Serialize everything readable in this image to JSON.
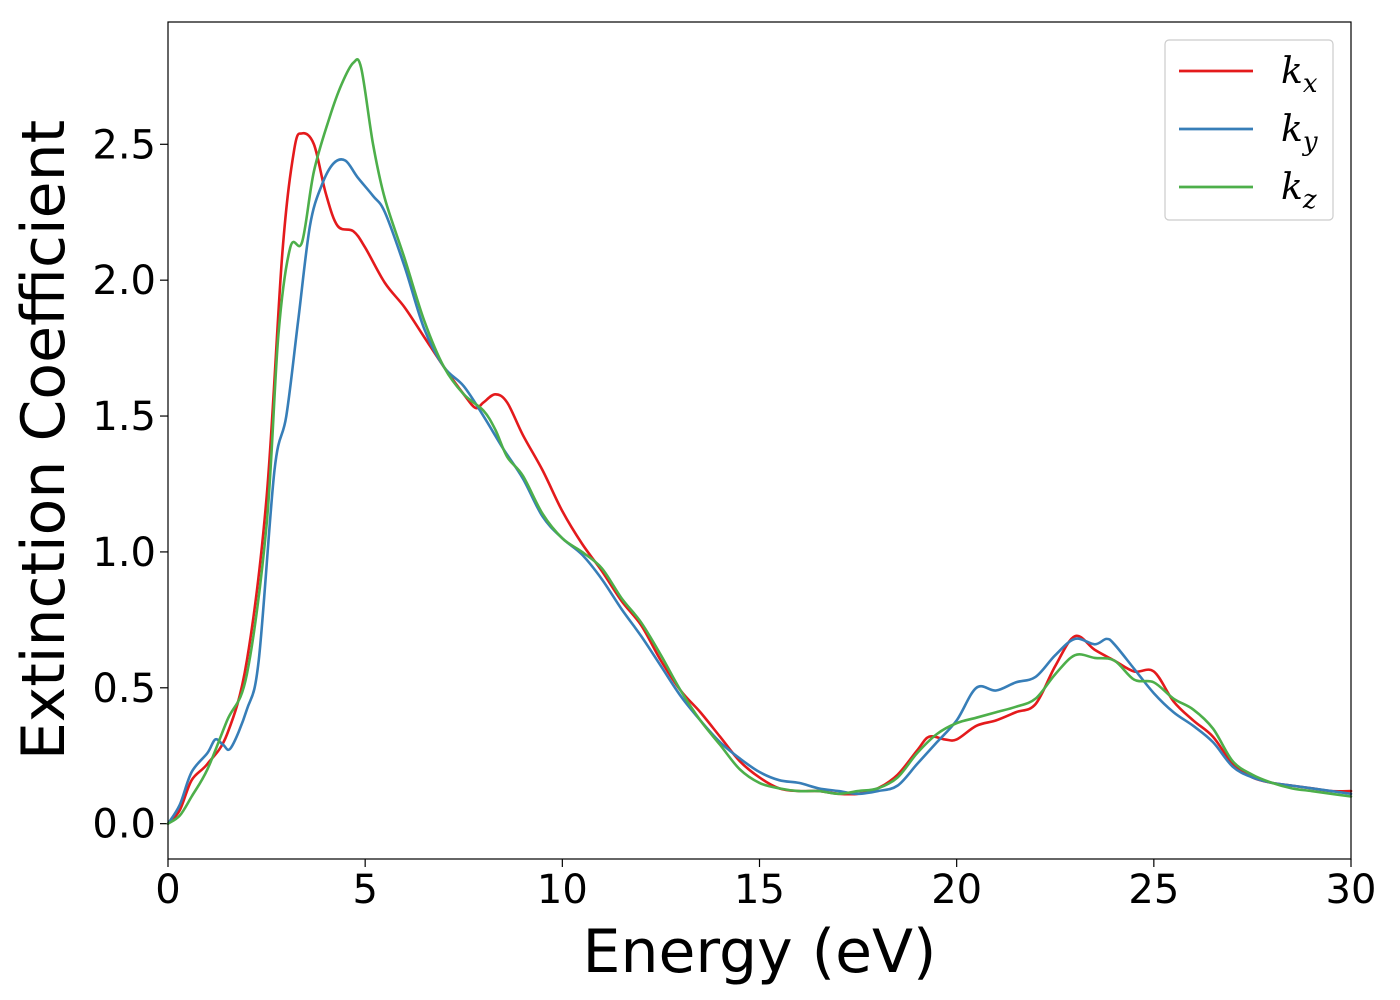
{
  "chart_data": {
    "type": "line",
    "xlabel": "Energy (eV)",
    "ylabel": "Extinction Coefficient",
    "xlim": [
      0,
      30
    ],
    "ylim": [
      -0.13,
      2.95
    ],
    "xticks": [
      0,
      5,
      10,
      15,
      20,
      25,
      30
    ],
    "xtick_labels": [
      "0",
      "5",
      "10",
      "15",
      "20",
      "25",
      "30"
    ],
    "yticks": [
      0.0,
      0.5,
      1.0,
      1.5,
      2.0,
      2.5
    ],
    "ytick_labels": [
      "0.0",
      "0.5",
      "1.0",
      "1.5",
      "2.0",
      "2.5"
    ],
    "grid": false,
    "legend_position": "top-right",
    "series": [
      {
        "name": "k",
        "subscript": "x",
        "color": "#e41a1c",
        "points": [
          [
            0,
            0
          ],
          [
            0.3,
            0.05
          ],
          [
            0.6,
            0.16
          ],
          [
            1.0,
            0.22
          ],
          [
            1.5,
            0.33
          ],
          [
            2.0,
            0.6
          ],
          [
            2.5,
            1.2
          ],
          [
            2.9,
            2.1
          ],
          [
            3.2,
            2.48
          ],
          [
            3.4,
            2.54
          ],
          [
            3.7,
            2.5
          ],
          [
            4.0,
            2.32
          ],
          [
            4.3,
            2.2
          ],
          [
            4.7,
            2.18
          ],
          [
            5.0,
            2.12
          ],
          [
            5.5,
            1.99
          ],
          [
            6.0,
            1.9
          ],
          [
            6.5,
            1.79
          ],
          [
            7.0,
            1.68
          ],
          [
            7.5,
            1.58
          ],
          [
            7.8,
            1.53
          ],
          [
            8.0,
            1.55
          ],
          [
            8.3,
            1.58
          ],
          [
            8.6,
            1.55
          ],
          [
            9.0,
            1.43
          ],
          [
            9.5,
            1.3
          ],
          [
            10.0,
            1.15
          ],
          [
            10.5,
            1.03
          ],
          [
            11.0,
            0.93
          ],
          [
            11.5,
            0.82
          ],
          [
            12.0,
            0.73
          ],
          [
            12.5,
            0.6
          ],
          [
            13.0,
            0.49
          ],
          [
            13.5,
            0.41
          ],
          [
            14.0,
            0.32
          ],
          [
            14.5,
            0.23
          ],
          [
            15.0,
            0.17
          ],
          [
            15.5,
            0.13
          ],
          [
            16.0,
            0.12
          ],
          [
            16.5,
            0.12
          ],
          [
            17.0,
            0.11
          ],
          [
            17.5,
            0.11
          ],
          [
            18.0,
            0.13
          ],
          [
            18.5,
            0.18
          ],
          [
            19.0,
            0.27
          ],
          [
            19.3,
            0.32
          ],
          [
            19.7,
            0.31
          ],
          [
            20.0,
            0.31
          ],
          [
            20.5,
            0.36
          ],
          [
            21.0,
            0.38
          ],
          [
            21.5,
            0.41
          ],
          [
            22.0,
            0.44
          ],
          [
            22.5,
            0.58
          ],
          [
            23.0,
            0.69
          ],
          [
            23.5,
            0.64
          ],
          [
            24.0,
            0.6
          ],
          [
            24.5,
            0.56
          ],
          [
            25.0,
            0.56
          ],
          [
            25.5,
            0.45
          ],
          [
            26.0,
            0.38
          ],
          [
            26.5,
            0.32
          ],
          [
            27.0,
            0.22
          ],
          [
            27.5,
            0.17
          ],
          [
            28.0,
            0.15
          ],
          [
            28.5,
            0.14
          ],
          [
            29.0,
            0.13
          ],
          [
            29.5,
            0.12
          ],
          [
            30.0,
            0.12
          ]
        ]
      },
      {
        "name": "k",
        "subscript": "y",
        "color": "#377eb8",
        "points": [
          [
            0,
            0
          ],
          [
            0.3,
            0.07
          ],
          [
            0.6,
            0.19
          ],
          [
            1.0,
            0.26
          ],
          [
            1.2,
            0.31
          ],
          [
            1.4,
            0.29
          ],
          [
            1.6,
            0.28
          ],
          [
            2.0,
            0.42
          ],
          [
            2.3,
            0.6
          ],
          [
            2.7,
            1.3
          ],
          [
            3.0,
            1.5
          ],
          [
            3.3,
            1.85
          ],
          [
            3.6,
            2.2
          ],
          [
            3.9,
            2.35
          ],
          [
            4.2,
            2.43
          ],
          [
            4.5,
            2.44
          ],
          [
            4.8,
            2.38
          ],
          [
            5.2,
            2.31
          ],
          [
            5.5,
            2.25
          ],
          [
            6.0,
            2.05
          ],
          [
            6.5,
            1.82
          ],
          [
            7.0,
            1.68
          ],
          [
            7.5,
            1.61
          ],
          [
            8.0,
            1.5
          ],
          [
            8.5,
            1.38
          ],
          [
            9.0,
            1.27
          ],
          [
            9.5,
            1.13
          ],
          [
            10.0,
            1.05
          ],
          [
            10.5,
            0.99
          ],
          [
            11.0,
            0.9
          ],
          [
            11.5,
            0.79
          ],
          [
            12.0,
            0.69
          ],
          [
            12.5,
            0.58
          ],
          [
            13.0,
            0.47
          ],
          [
            13.5,
            0.38
          ],
          [
            14.0,
            0.3
          ],
          [
            14.5,
            0.24
          ],
          [
            15.0,
            0.19
          ],
          [
            15.5,
            0.16
          ],
          [
            16.0,
            0.15
          ],
          [
            16.5,
            0.13
          ],
          [
            17.0,
            0.12
          ],
          [
            17.5,
            0.11
          ],
          [
            18.0,
            0.12
          ],
          [
            18.5,
            0.14
          ],
          [
            19.0,
            0.22
          ],
          [
            19.5,
            0.3
          ],
          [
            20.0,
            0.38
          ],
          [
            20.5,
            0.5
          ],
          [
            21.0,
            0.49
          ],
          [
            21.5,
            0.52
          ],
          [
            22.0,
            0.54
          ],
          [
            22.5,
            0.62
          ],
          [
            23.0,
            0.68
          ],
          [
            23.5,
            0.66
          ],
          [
            23.8,
            0.68
          ],
          [
            24.0,
            0.66
          ],
          [
            24.5,
            0.57
          ],
          [
            25.0,
            0.48
          ],
          [
            25.5,
            0.41
          ],
          [
            26.0,
            0.36
          ],
          [
            26.5,
            0.3
          ],
          [
            27.0,
            0.21
          ],
          [
            27.5,
            0.17
          ],
          [
            28.0,
            0.15
          ],
          [
            28.5,
            0.14
          ],
          [
            29.0,
            0.13
          ],
          [
            29.5,
            0.12
          ],
          [
            30.0,
            0.11
          ]
        ]
      },
      {
        "name": "k",
        "subscript": "z",
        "color": "#4daf4a",
        "points": [
          [
            0,
            0
          ],
          [
            0.3,
            0.03
          ],
          [
            0.6,
            0.1
          ],
          [
            1.0,
            0.2
          ],
          [
            1.5,
            0.38
          ],
          [
            2.0,
            0.55
          ],
          [
            2.5,
            1.1
          ],
          [
            2.8,
            1.8
          ],
          [
            3.1,
            2.12
          ],
          [
            3.4,
            2.14
          ],
          [
            3.7,
            2.4
          ],
          [
            4.1,
            2.6
          ],
          [
            4.4,
            2.72
          ],
          [
            4.7,
            2.8
          ],
          [
            4.9,
            2.78
          ],
          [
            5.2,
            2.5
          ],
          [
            5.5,
            2.3
          ],
          [
            6.0,
            2.08
          ],
          [
            6.5,
            1.85
          ],
          [
            7.0,
            1.68
          ],
          [
            7.5,
            1.58
          ],
          [
            8.0,
            1.52
          ],
          [
            8.3,
            1.45
          ],
          [
            8.6,
            1.35
          ],
          [
            9.0,
            1.28
          ],
          [
            9.5,
            1.14
          ],
          [
            10.0,
            1.05
          ],
          [
            10.5,
            1.0
          ],
          [
            11.0,
            0.94
          ],
          [
            11.5,
            0.83
          ],
          [
            12.0,
            0.74
          ],
          [
            12.5,
            0.62
          ],
          [
            13.0,
            0.49
          ],
          [
            13.5,
            0.38
          ],
          [
            14.0,
            0.29
          ],
          [
            14.5,
            0.2
          ],
          [
            15.0,
            0.15
          ],
          [
            15.5,
            0.13
          ],
          [
            16.0,
            0.12
          ],
          [
            16.5,
            0.12
          ],
          [
            17.0,
            0.11
          ],
          [
            17.5,
            0.12
          ],
          [
            18.0,
            0.13
          ],
          [
            18.5,
            0.17
          ],
          [
            19.0,
            0.26
          ],
          [
            19.5,
            0.33
          ],
          [
            20.0,
            0.37
          ],
          [
            20.5,
            0.39
          ],
          [
            21.0,
            0.41
          ],
          [
            21.5,
            0.43
          ],
          [
            22.0,
            0.46
          ],
          [
            22.5,
            0.55
          ],
          [
            23.0,
            0.62
          ],
          [
            23.5,
            0.61
          ],
          [
            24.0,
            0.6
          ],
          [
            24.5,
            0.53
          ],
          [
            25.0,
            0.52
          ],
          [
            25.5,
            0.46
          ],
          [
            26.0,
            0.42
          ],
          [
            26.5,
            0.35
          ],
          [
            27.0,
            0.23
          ],
          [
            27.5,
            0.18
          ],
          [
            28.0,
            0.15
          ],
          [
            28.5,
            0.13
          ],
          [
            29.0,
            0.12
          ],
          [
            29.5,
            0.11
          ],
          [
            30.0,
            0.1
          ]
        ]
      }
    ]
  }
}
